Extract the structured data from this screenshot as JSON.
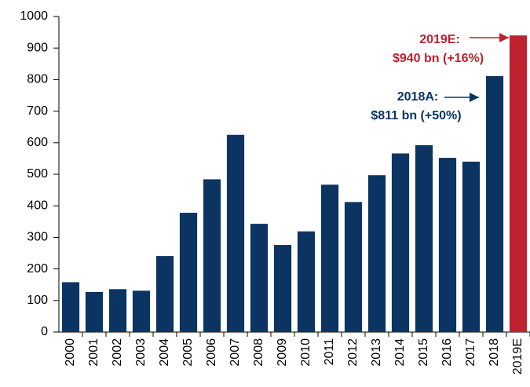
{
  "chart_data": {
    "type": "bar",
    "categories": [
      "2000",
      "2001",
      "2002",
      "2003",
      "2004",
      "2005",
      "2006",
      "2007",
      "2008",
      "2009",
      "2010",
      "2011",
      "2012",
      "2013",
      "2014",
      "2015",
      "2016",
      "2017",
      "2018",
      "2019E"
    ],
    "values": [
      158,
      127,
      136,
      131,
      241,
      378,
      484,
      625,
      343,
      276,
      319,
      467,
      412,
      497,
      566,
      592,
      552,
      540,
      811,
      940
    ],
    "colors": [
      "#0b3463",
      "#0b3463",
      "#0b3463",
      "#0b3463",
      "#0b3463",
      "#0b3463",
      "#0b3463",
      "#0b3463",
      "#0b3463",
      "#0b3463",
      "#0b3463",
      "#0b3463",
      "#0b3463",
      "#0b3463",
      "#0b3463",
      "#0b3463",
      "#0b3463",
      "#0b3463",
      "#0b3463",
      "#c0212f"
    ],
    "ylim": [
      0,
      1000
    ],
    "yticks": [
      0,
      100,
      200,
      300,
      400,
      500,
      600,
      700,
      800,
      900,
      1000
    ],
    "annotations": [
      {
        "lines": [
          "2019E:",
          "$940 bn (+16%)"
        ],
        "color": "#c0212f"
      },
      {
        "lines": [
          "2018A:",
          "$811 bn (+50%)"
        ],
        "color": "#0b3463"
      }
    ]
  }
}
